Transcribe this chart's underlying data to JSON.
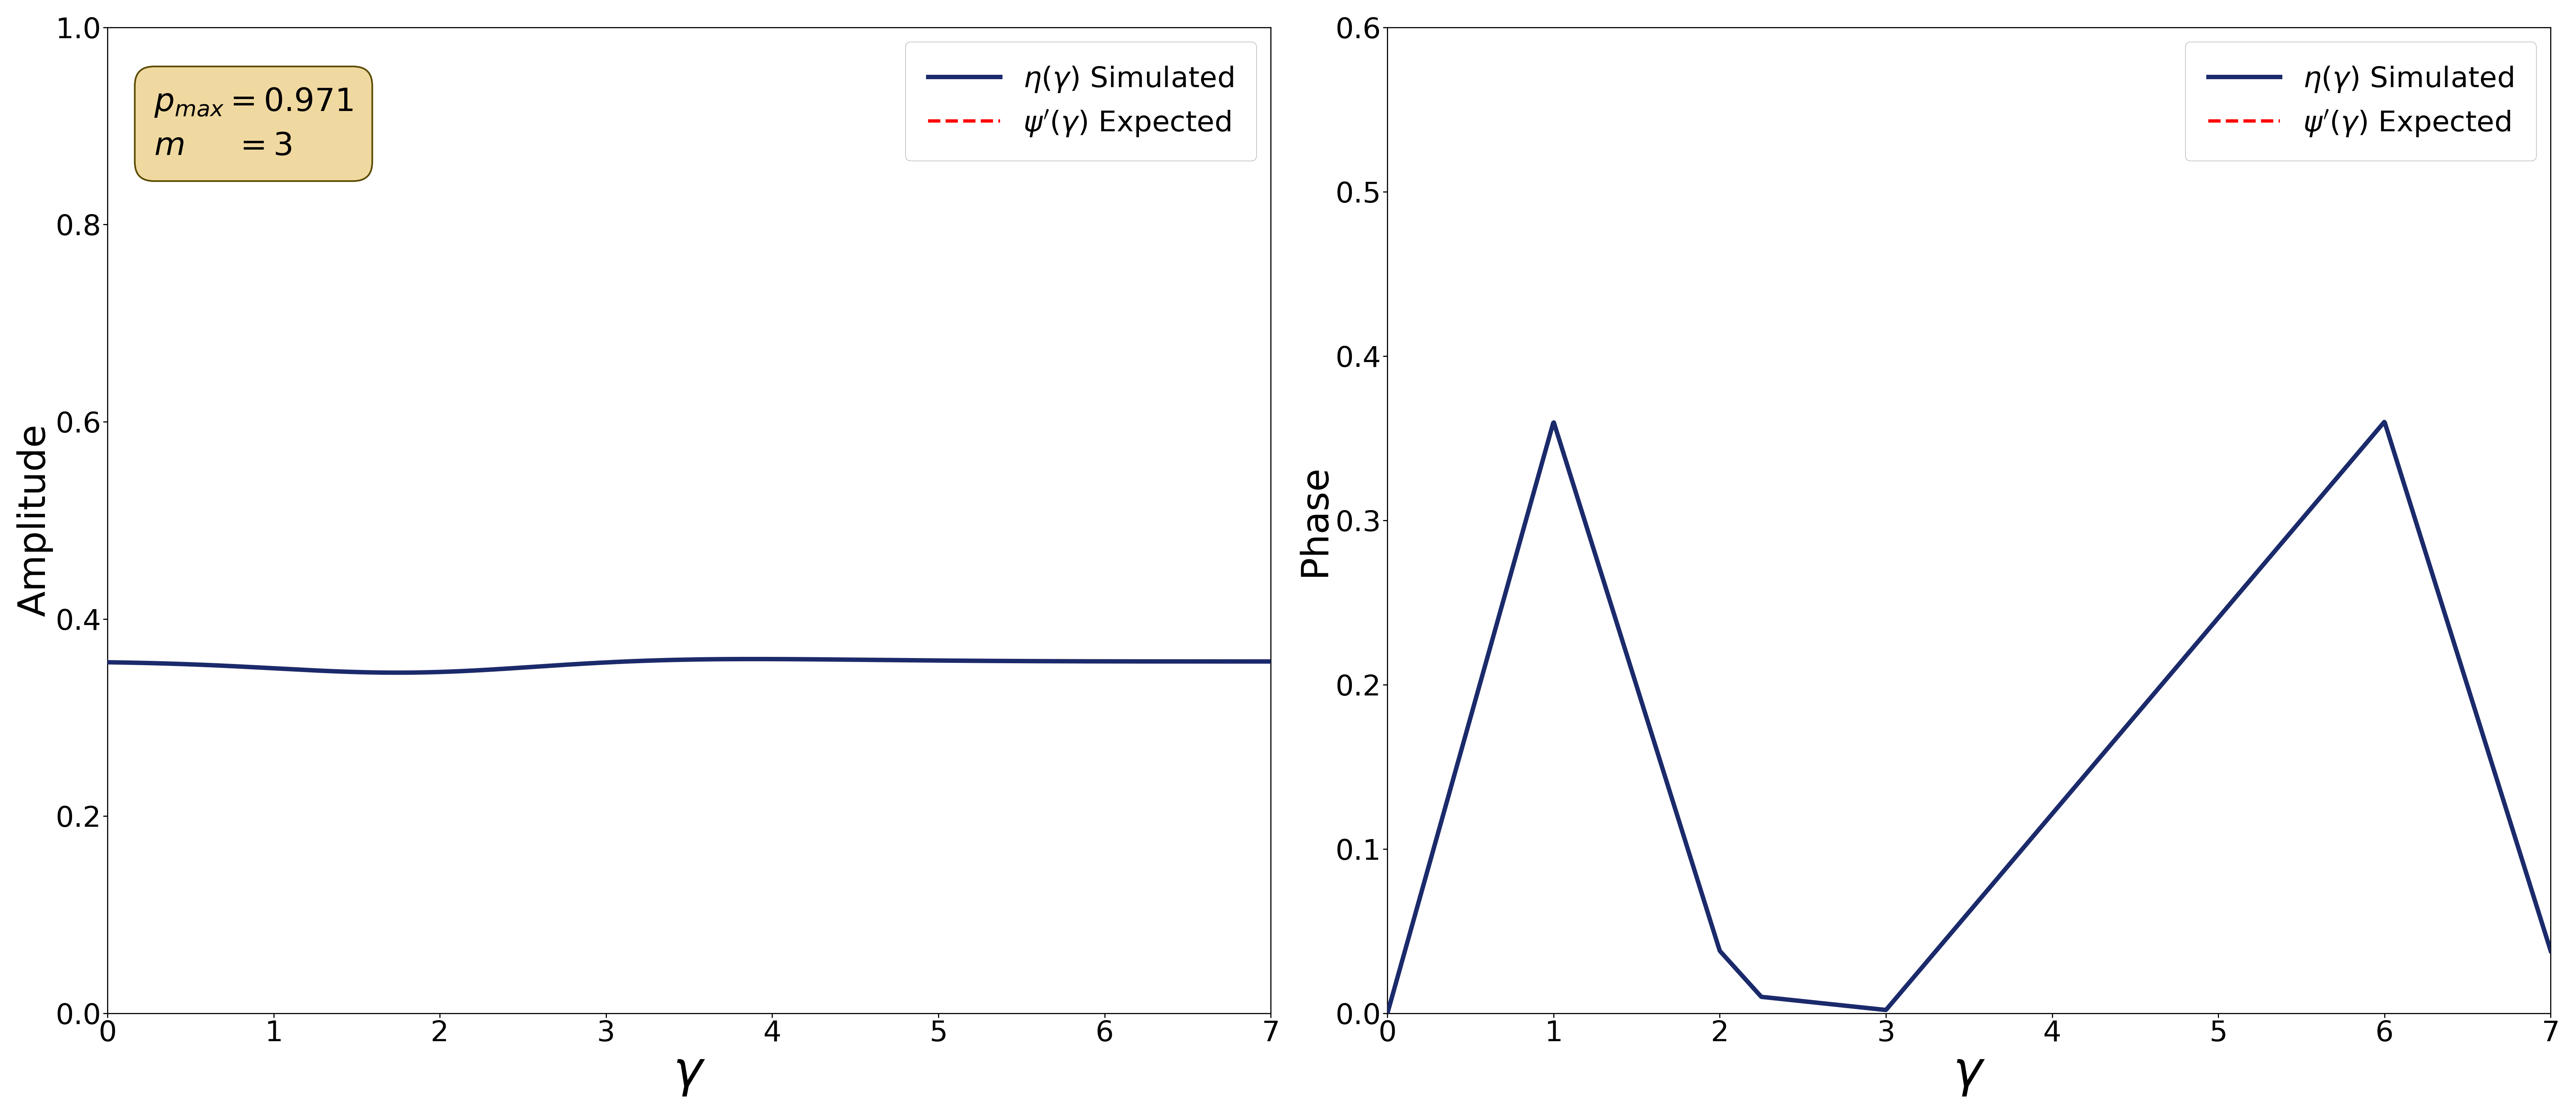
{
  "left_plot": {
    "xlabel": "$\\gamma$",
    "ylabel": "Amplitude",
    "xlim": [
      0,
      7
    ],
    "ylim": [
      0.0,
      1.0
    ],
    "yticks": [
      0.0,
      0.2,
      0.4,
      0.6,
      0.8,
      1.0
    ],
    "xticks": [
      0,
      1,
      2,
      3,
      4,
      5,
      6,
      7
    ],
    "textbox_text": "$p_{max} = 0.971$\n$m \\quad\\;\\; = 3$",
    "textbox_facecolor": "#f0d9a0",
    "textbox_edgecolor": "#5a4a00"
  },
  "right_plot": {
    "xlabel": "$\\gamma$",
    "ylabel": "Phase",
    "xlim": [
      0,
      7
    ],
    "ylim": [
      0.0,
      0.6
    ],
    "yticks": [
      0.0,
      0.1,
      0.2,
      0.3,
      0.4,
      0.5,
      0.6
    ],
    "xticks": [
      0,
      1,
      2,
      3,
      4,
      5,
      6,
      7
    ]
  },
  "simulated_color": "#1b2a6b",
  "simulated_linewidth": 8.0,
  "expected_color": "#ff0000",
  "expected_linewidth": 6.0,
  "expected_linestyle": "--",
  "legend_eta_label": "$\\eta(\\gamma)$ Simulated",
  "legend_psi_label": "$\\psi'(\\gamma)$ Expected",
  "tick_labelsize": 52,
  "axis_labelsize": 68,
  "gamma_labelsize": 90,
  "legend_fontsize": 52,
  "textbox_fontsize": 58
}
